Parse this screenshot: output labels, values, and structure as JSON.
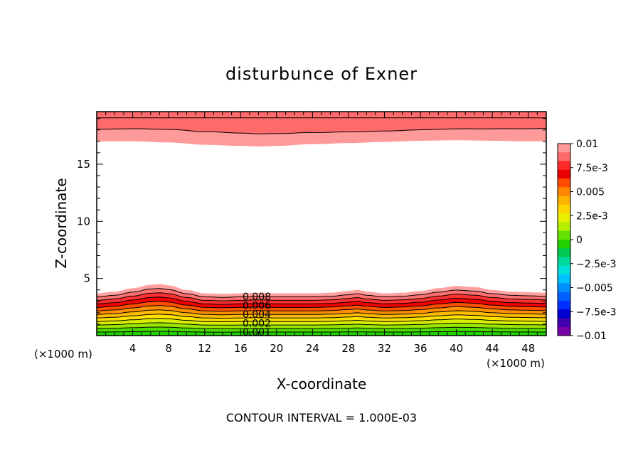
{
  "chart_data": {
    "type": "contour",
    "title": "disturbunce of Exner",
    "xlabel": "X-coordinate",
    "ylabel": "Z-coordinate",
    "x_unit": "(×1000 m)",
    "xlim": [
      0,
      50
    ],
    "ylim": [
      0,
      19.6
    ],
    "x_ticks": [
      "4",
      "8",
      "12",
      "16",
      "20",
      "24",
      "28",
      "32",
      "36",
      "40",
      "44",
      "48"
    ],
    "y_ticks": [
      "5",
      "10",
      "15"
    ],
    "contour_interval_text": "CONTOUR INTERVAL = 1.000E-03",
    "contour_labels": [
      "0.008",
      "0.006",
      "0.004",
      "0.002",
      "0.001"
    ],
    "colorbar": {
      "labels": [
        "0.01",
        "7.5e-3",
        "0.005",
        "2.5e-3",
        "0",
        "−2.5e-3",
        "−0.005",
        "−7.5e-3",
        "−0.01"
      ],
      "range": [
        -0.01,
        0.01
      ],
      "colors": [
        "#ff9a9a",
        "#ff6a6a",
        "#ff2a2a",
        "#e80000",
        "#ff4a00",
        "#ff8800",
        "#ffb400",
        "#ffd700",
        "#e6f000",
        "#b4f000",
        "#66e000",
        "#22d000",
        "#00c850",
        "#00d8a0",
        "#00e0d8",
        "#00c0ff",
        "#0090ff",
        "#0060ff",
        "#0030ff",
        "#0000d0",
        "#4000b0",
        "#7800a8"
      ]
    },
    "bottom_layer": {
      "description_levels": [
        0.001,
        0.002,
        0.003,
        0.004,
        0.005,
        0.006,
        0.007,
        0.008,
        0.009,
        0.01
      ],
      "top_height_profile": {
        "x": [
          0,
          2,
          4,
          6,
          7,
          8,
          10,
          12,
          14,
          16,
          18,
          20,
          22,
          24,
          26,
          28,
          29,
          30,
          32,
          34,
          36,
          38,
          40,
          42,
          44,
          46,
          48,
          50
        ],
        "z": [
          3.7,
          3.85,
          4.15,
          4.45,
          4.5,
          4.4,
          4.0,
          3.7,
          3.65,
          3.7,
          3.75,
          3.7,
          3.7,
          3.7,
          3.75,
          3.9,
          4.0,
          3.85,
          3.7,
          3.75,
          3.9,
          4.15,
          4.35,
          4.25,
          4.0,
          3.85,
          3.8,
          3.75
        ]
      }
    },
    "top_layer": {
      "levels": [
        0.009,
        0.01
      ],
      "bottom_height_profile": {
        "x": [
          0,
          4,
          8,
          12,
          16,
          18,
          20,
          24,
          28,
          32,
          36,
          40,
          44,
          48,
          50
        ],
        "z": [
          17.0,
          17.0,
          16.9,
          16.7,
          16.6,
          16.55,
          16.6,
          16.75,
          16.85,
          16.95,
          17.05,
          17.1,
          17.05,
          17.0,
          17.0
        ]
      }
    }
  }
}
